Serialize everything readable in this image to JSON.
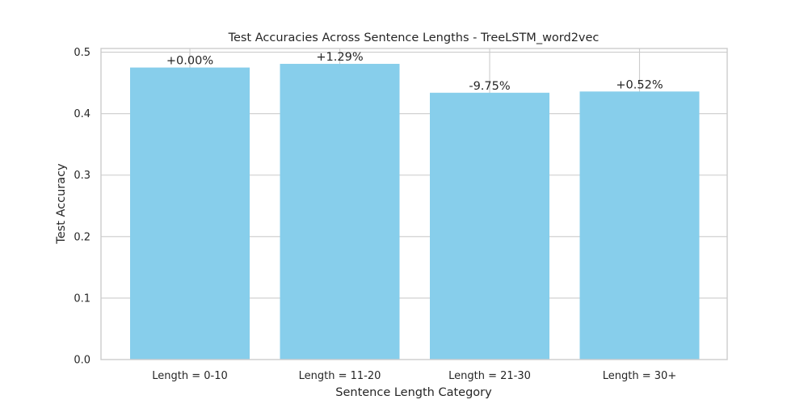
{
  "chart_data": {
    "type": "bar",
    "title": "Test Accuracies Across Sentence Lengths - TreeLSTM_word2vec",
    "xlabel": "Sentence Length Category",
    "ylabel": "Test Accuracy",
    "categories": [
      "Length = 0-10",
      "Length = 11-20",
      "Length = 21-30",
      "Length = 30+"
    ],
    "values": [
      0.475,
      0.481,
      0.434,
      0.436
    ],
    "bar_labels": [
      "+0.00%",
      "+1.29%",
      "-9.75%",
      "+0.52%"
    ],
    "ylim": [
      0,
      0.506
    ],
    "yticks": [
      0.0,
      0.1,
      0.2,
      0.3,
      0.4,
      0.5
    ],
    "ytick_labels": [
      "0.0",
      "0.1",
      "0.2",
      "0.3",
      "0.4",
      "0.5"
    ],
    "grid": true,
    "bar_color": "#87ceeb"
  }
}
